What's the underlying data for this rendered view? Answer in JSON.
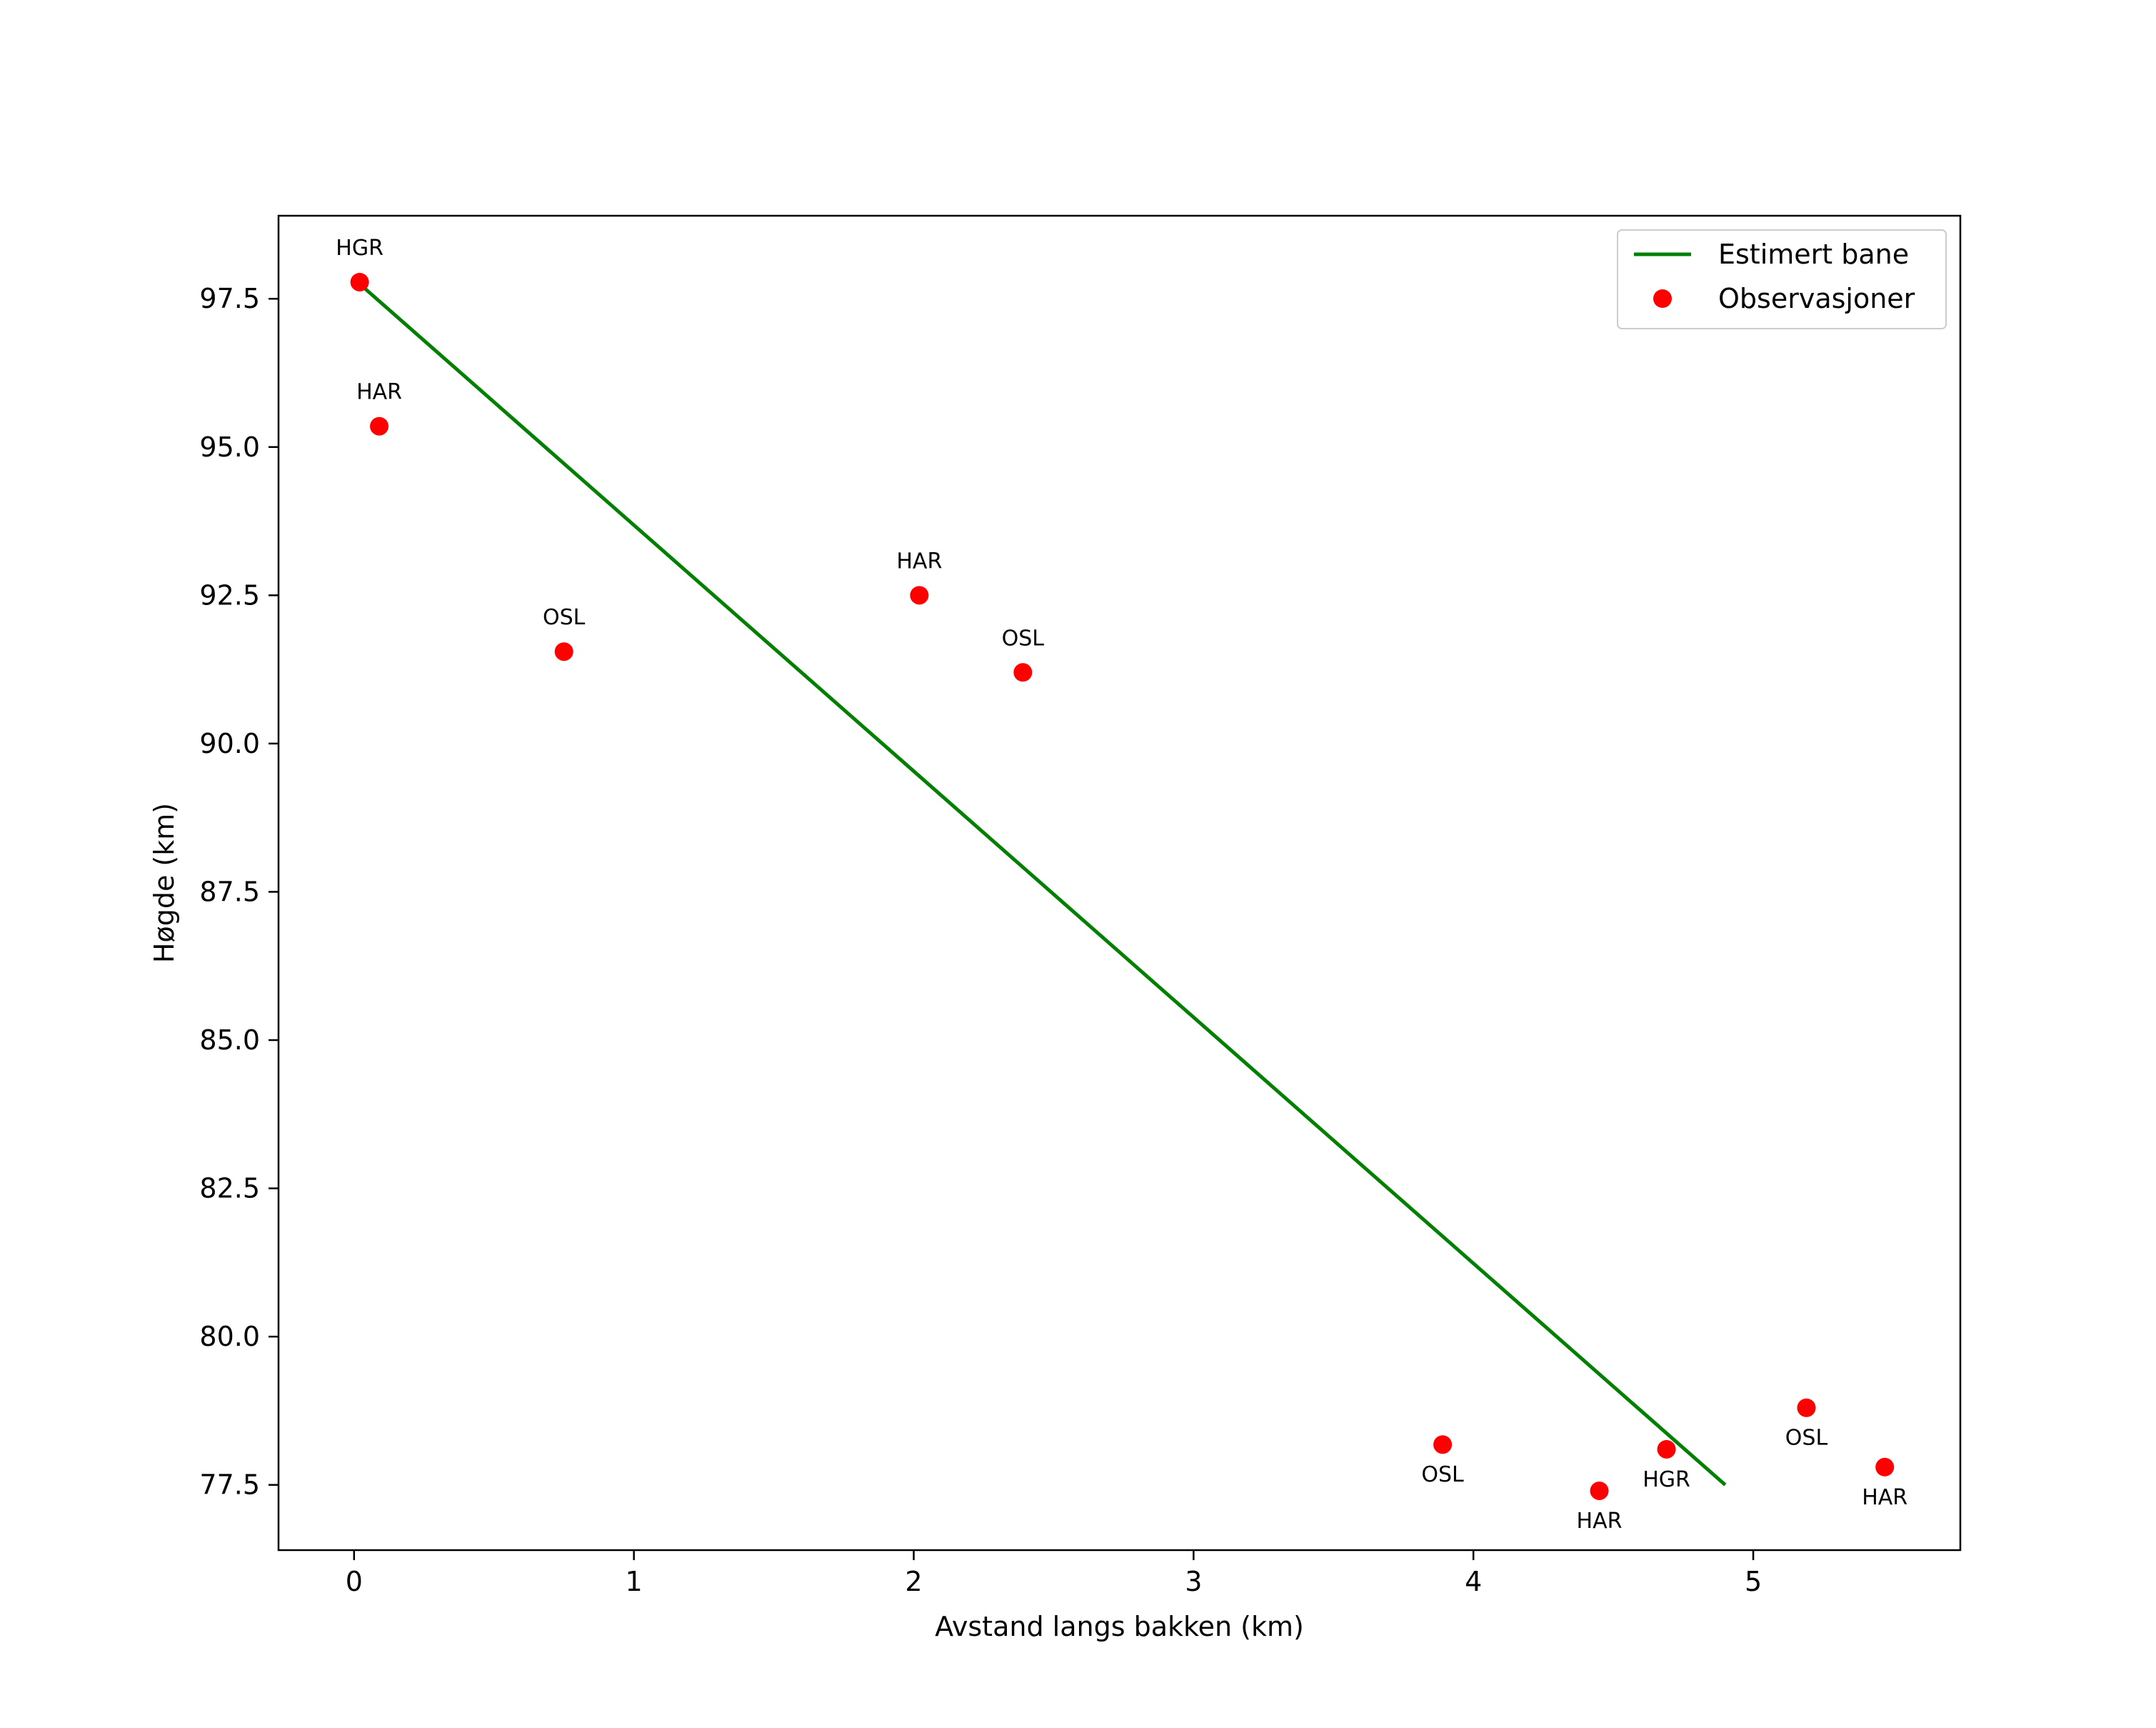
{
  "chart_data": {
    "type": "scatter",
    "title": "",
    "xlabel": "Avstand langs bakken (km)",
    "ylabel": "Høgde (km)",
    "xlim": [
      -0.27,
      5.74
    ],
    "ylim": [
      76.4,
      98.9
    ],
    "xticks": [
      0,
      1,
      2,
      3,
      4,
      5
    ],
    "yticks": [
      77.5,
      80.0,
      82.5,
      85.0,
      87.5,
      90.0,
      92.5,
      95.0,
      97.5
    ],
    "ytick_labels": [
      "77.5",
      "80.0",
      "82.5",
      "85.0",
      "87.5",
      "90.0",
      "92.5",
      "95.0",
      "97.5"
    ],
    "grid": false,
    "legend_position": "top-right",
    "series": [
      {
        "name": "Estimert bane",
        "kind": "line",
        "color": "#008000",
        "x": [
          0.02,
          4.9
        ],
        "y": [
          97.75,
          77.5
        ]
      },
      {
        "name": "Observasjoner",
        "kind": "scatter",
        "color": "#ff0000",
        "points": [
          {
            "x": 0.02,
            "y": 97.78,
            "label": "HGR",
            "label_pos": "above"
          },
          {
            "x": 0.09,
            "y": 95.35,
            "label": "HAR",
            "label_pos": "above"
          },
          {
            "x": 0.75,
            "y": 91.55,
            "label": "OSL",
            "label_pos": "above"
          },
          {
            "x": 2.02,
            "y": 92.5,
            "label": "HAR",
            "label_pos": "above"
          },
          {
            "x": 2.39,
            "y": 91.2,
            "label": "OSL",
            "label_pos": "above"
          },
          {
            "x": 3.89,
            "y": 78.18,
            "label": "OSL",
            "label_pos": "below"
          },
          {
            "x": 4.45,
            "y": 77.4,
            "label": "HAR",
            "label_pos": "below"
          },
          {
            "x": 4.69,
            "y": 78.1,
            "label": "HGR",
            "label_pos": "below"
          },
          {
            "x": 5.19,
            "y": 78.8,
            "label": "OSL",
            "label_pos": "below"
          },
          {
            "x": 5.47,
            "y": 77.8,
            "label": "HAR",
            "label_pos": "below"
          }
        ]
      }
    ]
  }
}
